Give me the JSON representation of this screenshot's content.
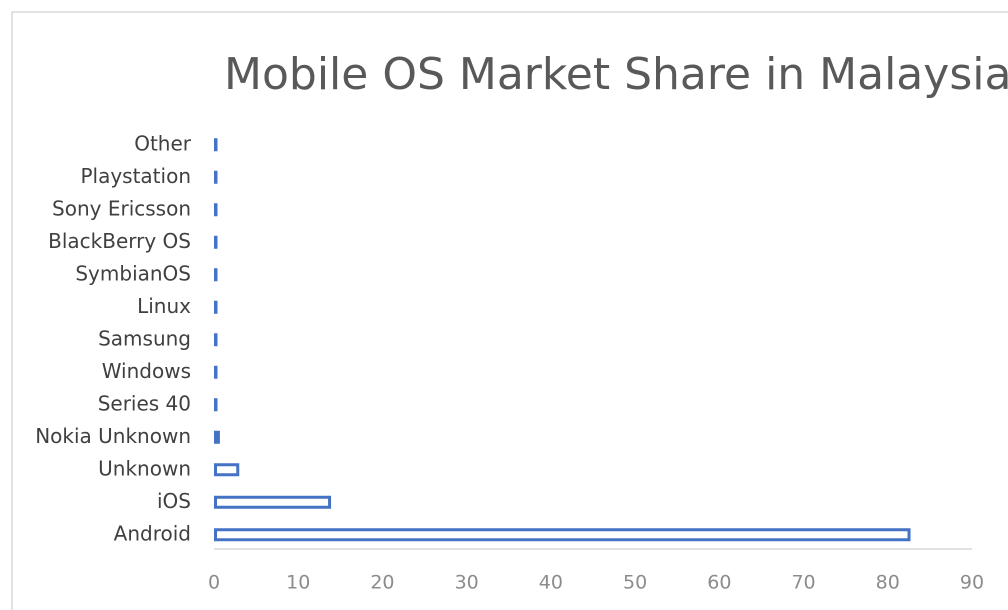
{
  "chart_data": {
    "type": "barh",
    "title": "Mobile OS Market Share in Malaysia",
    "categories": [
      "Android",
      "iOS",
      "Unknown",
      "Nokia Unknown",
      "Series 40",
      "Windows",
      "Samsung",
      "Linux",
      "SymbianOS",
      "BlackBerry OS",
      "Sony Ericsson",
      "Playstation",
      "Other"
    ],
    "values": [
      82.7,
      13.9,
      3.0,
      0.7,
      0.3,
      0.3,
      0.3,
      0.3,
      0.3,
      0.3,
      0.3,
      0.3,
      0.3
    ],
    "color": "#4472c4",
    "xlim": [
      0,
      90
    ],
    "xticks": [
      0,
      10,
      20,
      30,
      40,
      50,
      60,
      70,
      80,
      90
    ],
    "grid": false
  }
}
